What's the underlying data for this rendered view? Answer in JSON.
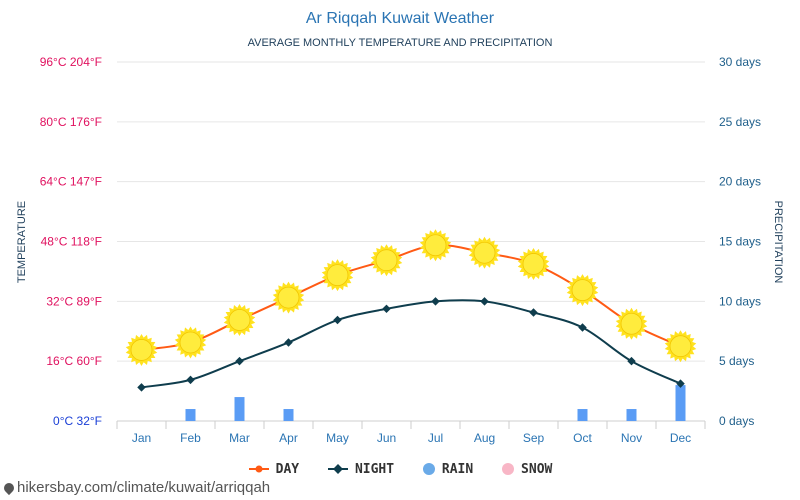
{
  "page_title": "Ar Riqqah Kuwait Weather",
  "subtitle": "AVERAGE MONTHLY TEMPERATURE AND PRECIPITATION",
  "left_axis_title": "TEMPERATURE",
  "right_axis_title": "PRECIPITATION",
  "watermark": "hikersbay.com/climate/kuwait/arriqqah",
  "legend": [
    {
      "label": "DAY",
      "color": "#ff5a14",
      "icon": "line-dot"
    },
    {
      "label": "NIGHT",
      "color": "#0f3d4d",
      "icon": "line-diamond"
    },
    {
      "label": "RAIN",
      "color": "#6aaae8",
      "icon": "circle"
    },
    {
      "label": "SNOW",
      "color": "#f8b6c6",
      "icon": "circle"
    }
  ],
  "colors": {
    "title": "#2a74b3",
    "left_ticks": "#e0115f",
    "right_ticks": "#1f5f8b",
    "month_labels": "#2a74b3",
    "day_line": "#ff5a14",
    "night_line": "#0f3d4d",
    "rain_bar": "#5a9cf5",
    "sun_icon": "#ffe21f",
    "grid": "#e6e6e6"
  },
  "chart_data": {
    "type": "line",
    "title": "Ar Riqqah Kuwait Weather",
    "subtitle": "AVERAGE MONTHLY TEMPERATURE AND PRECIPITATION",
    "categories": [
      "Jan",
      "Feb",
      "Mar",
      "Apr",
      "May",
      "Jun",
      "Jul",
      "Aug",
      "Sep",
      "Oct",
      "Nov",
      "Dec"
    ],
    "left_axis": {
      "label": "TEMPERATURE",
      "range": [
        0,
        96
      ],
      "ticks": [
        "0°C 32°F",
        "16°C 60°F",
        "32°C 89°F",
        "48°C 118°F",
        "64°C 147°F",
        "80°C 176°F",
        "96°C 204°F"
      ],
      "tick_values": [
        0,
        16,
        32,
        48,
        64,
        80,
        96
      ]
    },
    "right_axis": {
      "label": "PRECIPITATION",
      "range": [
        0,
        30
      ],
      "ticks": [
        "0 days",
        "5 days",
        "10 days",
        "15 days",
        "20 days",
        "25 days",
        "30 days"
      ],
      "tick_values": [
        0,
        5,
        10,
        15,
        20,
        25,
        30
      ]
    },
    "grid": true,
    "legend_position": "bottom",
    "series": [
      {
        "name": "DAY",
        "axis": "left",
        "values": [
          19,
          21,
          27,
          33,
          39,
          43,
          47,
          45,
          42,
          35,
          26,
          20
        ]
      },
      {
        "name": "NIGHT",
        "axis": "left",
        "values": [
          9,
          11,
          16,
          21,
          27,
          30,
          32,
          32,
          29,
          25,
          16,
          10
        ]
      },
      {
        "name": "RAIN",
        "axis": "right",
        "type": "bar",
        "values": [
          0,
          1,
          2,
          1,
          0,
          0,
          0,
          0,
          0,
          1,
          1,
          3
        ]
      },
      {
        "name": "SNOW",
        "axis": "right",
        "type": "bar",
        "values": [
          0,
          0,
          0,
          0,
          0,
          0,
          0,
          0,
          0,
          0,
          0,
          0
        ]
      }
    ]
  }
}
